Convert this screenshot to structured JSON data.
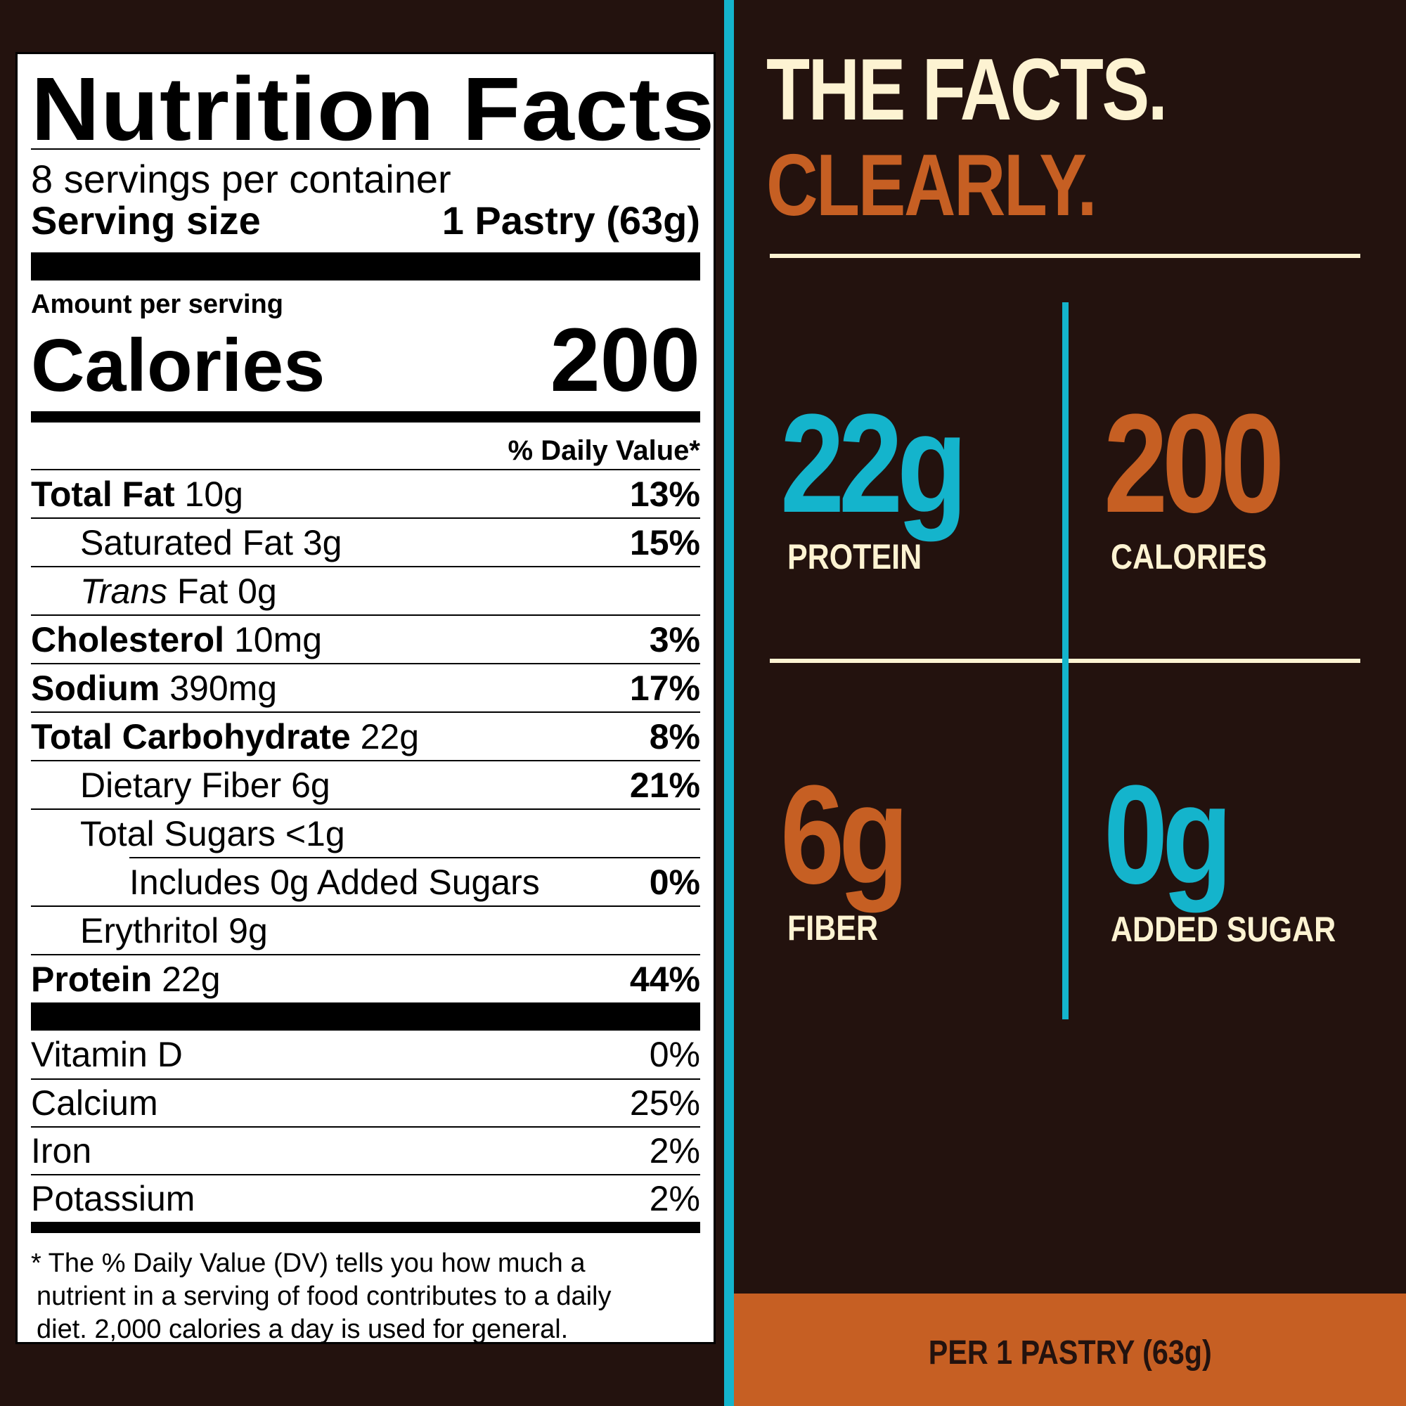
{
  "label": {
    "title": "Nutrition Facts",
    "servings_per_container": "8 servings per container",
    "serving_size_label": "Serving size",
    "serving_size_value": "1 Pastry (63g)",
    "amount_per_serving": "Amount per serving",
    "calories_label": "Calories",
    "calories_value": "200",
    "daily_value_header": "% Daily Value*",
    "nutrients": [
      {
        "name": "Total Fat",
        "amount": "10g",
        "dv": "13%"
      },
      {
        "name": "Saturated Fat",
        "amount": "3g",
        "dv": "15%"
      },
      {
        "name": "Trans",
        "name_rest": "Fat",
        "amount": "0g",
        "dv": ""
      },
      {
        "name": "Cholesterol",
        "amount": "10mg",
        "dv": "3%"
      },
      {
        "name": "Sodium",
        "amount": "390mg",
        "dv": "17%"
      },
      {
        "name": "Total Carbohydrate",
        "amount": "22g",
        "dv": "8%"
      },
      {
        "name": "Dietary Fiber",
        "amount": "6g",
        "dv": "21%"
      },
      {
        "name": "Total Sugars",
        "amount": "<1g",
        "dv": ""
      },
      {
        "name": "Includes 0g Added Sugars",
        "amount": "",
        "dv": "0%"
      },
      {
        "name": "Erythritol",
        "amount": "9g",
        "dv": ""
      },
      {
        "name": "Protein",
        "amount": "22g",
        "dv": "44%"
      }
    ],
    "vitamins": [
      {
        "name": "Vitamin D",
        "dv": "0%"
      },
      {
        "name": "Calcium",
        "dv": "25%"
      },
      {
        "name": "Iron",
        "dv": "2%"
      },
      {
        "name": "Potassium",
        "dv": "2%"
      }
    ],
    "footnote_line1": "* The % Daily Value (DV) tells you how much a",
    "footnote_line2": "nutrient in a serving of food contributes to a daily",
    "footnote_line3": "diet. 2,000 calories a day is used for general."
  },
  "panel": {
    "headline_1": "THE FACTS.",
    "headline_2": "CLEARLY.",
    "stats": [
      {
        "value": "22g",
        "label": "PROTEIN",
        "color": "#14b4cc"
      },
      {
        "value": "200",
        "label": "CALORIES",
        "color": "#c65f23"
      },
      {
        "value": "6g",
        "label": "FIBER",
        "color": "#c65f23"
      },
      {
        "value": "0g",
        "label": "ADDED SUGAR",
        "color": "#14b4cc"
      }
    ],
    "footer": "PER 1 PASTRY (63g)"
  },
  "colors": {
    "background": "#23120e",
    "cream": "#fdf3d2",
    "orange": "#c65f23",
    "teal": "#14b4cc"
  }
}
